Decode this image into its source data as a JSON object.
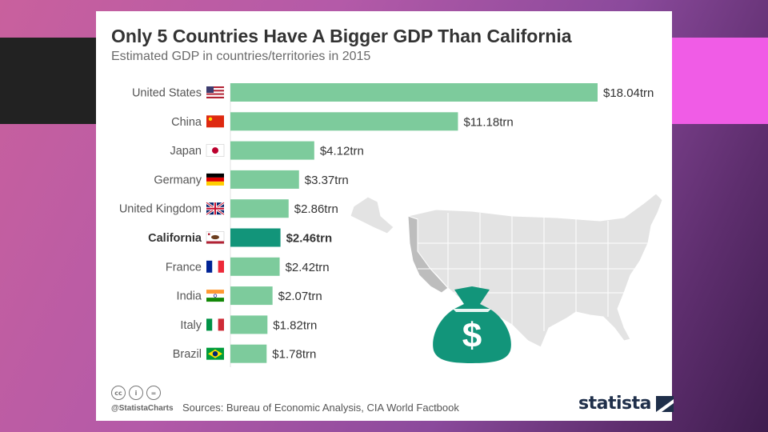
{
  "slide": {
    "colors": {
      "background_from": "#c9609d",
      "background_to": "#3f1d4f",
      "deco_dark": "#222222",
      "deco_pink": "#f05ce6"
    }
  },
  "chart_data": {
    "type": "bar",
    "orientation": "horizontal",
    "title": "Only 5 Countries Have A Bigger GDP Than California",
    "subtitle": "Estimated GDP in countries/territories in 2015",
    "categories": [
      "United States",
      "China",
      "Japan",
      "Germany",
      "United Kingdom",
      "California",
      "France",
      "India",
      "Italy",
      "Brazil"
    ],
    "values": [
      18.04,
      11.18,
      4.12,
      3.37,
      2.86,
      2.46,
      2.42,
      2.07,
      1.82,
      1.78
    ],
    "value_labels": [
      "$18.04trn",
      "$11.18trn",
      "$4.12trn",
      "$3.37trn",
      "$2.86trn",
      "$2.46trn",
      "$2.42trn",
      "$2.07trn",
      "$1.82trn",
      "$1.78trn"
    ],
    "highlight": "California",
    "xlim": [
      0,
      18.04
    ],
    "grid": false,
    "colors": {
      "bar": "#7dcb9c",
      "highlight": "#12957a"
    },
    "flag_icons": [
      "us-flag-icon",
      "china-flag-icon",
      "japan-flag-icon",
      "germany-flag-icon",
      "uk-flag-icon",
      "california-flag-icon",
      "france-flag-icon",
      "india-flag-icon",
      "italy-flag-icon",
      "brazil-flag-icon"
    ]
  },
  "footer": {
    "handle": "@StatistaCharts",
    "sources": "Sources: Bureau of Economic Analysis, CIA World Factbook",
    "brand": "statista",
    "license_icons": [
      "cc-icon",
      "attribution-icon",
      "no-derivatives-icon"
    ],
    "license_glyphs": [
      "cc",
      "i",
      "="
    ]
  },
  "illustration": {
    "money_bag_symbol": "$",
    "colors": {
      "map": "#e3e3e3",
      "california": "#bdbdbd",
      "bag": "#12957a"
    }
  }
}
